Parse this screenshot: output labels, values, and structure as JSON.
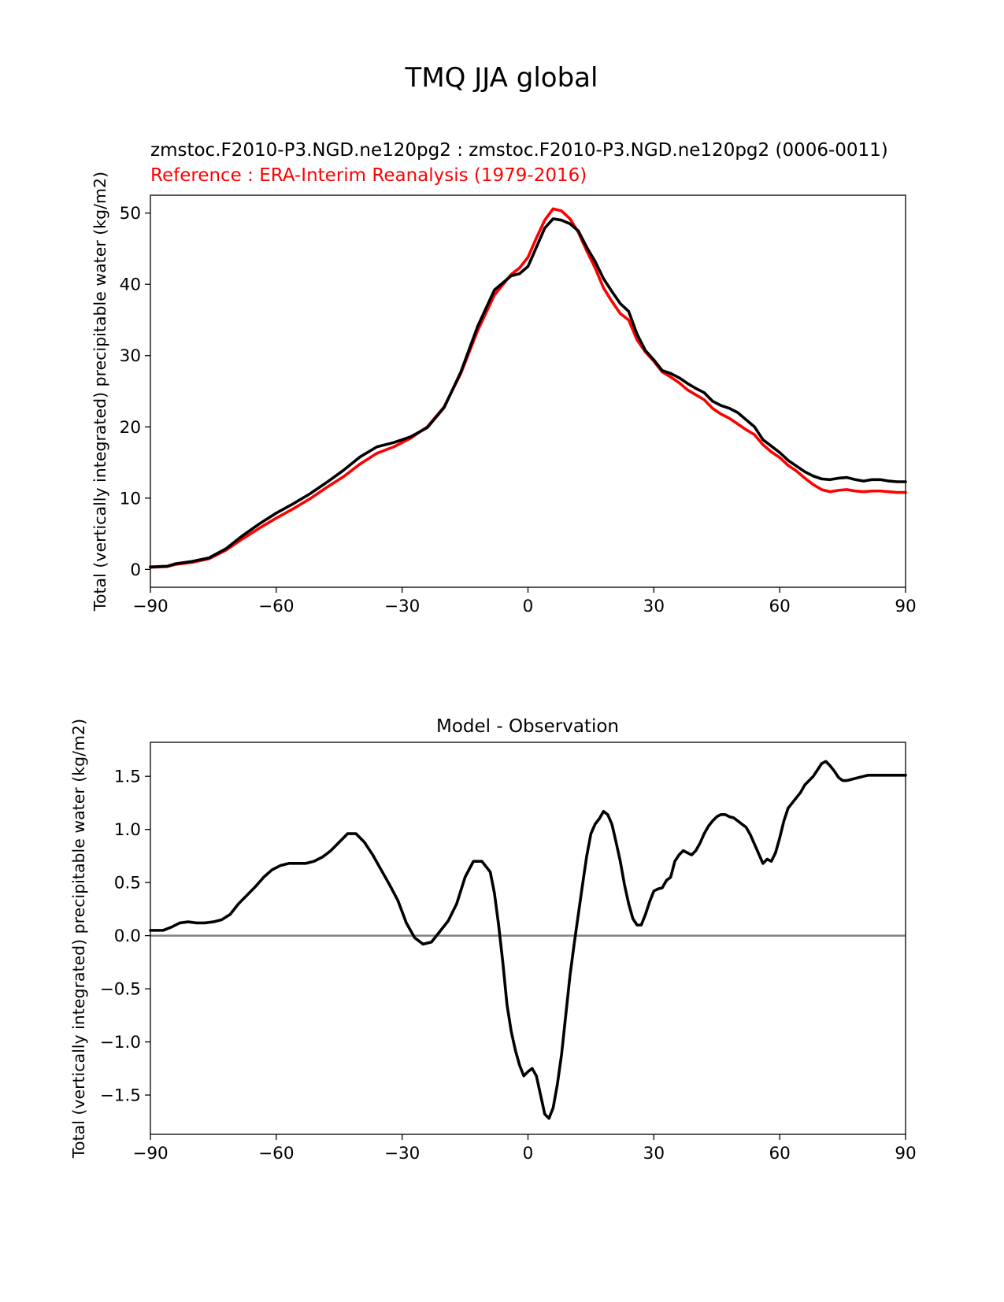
{
  "figure_title": "TMQ JJA global",
  "chart_data": [
    {
      "type": "line",
      "test_title": "zmstoc.F2010-P3.NGD.ne120pg2 : zmstoc.F2010-P3.NGD.ne120pg2 (0006-0011)",
      "ref_title": "Reference : ERA-Interim Reanalysis (1979-2016)",
      "xlabel": "",
      "ylabel": "Total (vertically integrated) precipitable water (kg/m2)",
      "xlim": [
        -90,
        90
      ],
      "ylim": [
        -2.5,
        52.5
      ],
      "xticks": [
        -90,
        -60,
        -30,
        0,
        30,
        60,
        90
      ],
      "xtick_labels": [
        "−90",
        "−60",
        "−30",
        "0",
        "30",
        "60",
        "90"
      ],
      "yticks": [
        0,
        10,
        20,
        30,
        40,
        50
      ],
      "ytick_labels": [
        "0",
        "10",
        "20",
        "30",
        "40",
        "50"
      ],
      "series": [
        {
          "name": "ERA-Interim Reanalysis (1979-2016)",
          "color": "#ff0000",
          "x": [
            -90,
            -86,
            -84,
            -80,
            -76,
            -72,
            -68,
            -64,
            -60,
            -56,
            -52,
            -48,
            -44,
            -40,
            -36,
            -32,
            -28,
            -24,
            -20,
            -16,
            -12,
            -8,
            -4,
            -2,
            0,
            2,
            4,
            6,
            8,
            10,
            12,
            14,
            16,
            18,
            20,
            22,
            24,
            26,
            28,
            30,
            32,
            34,
            36,
            38,
            40,
            42,
            44,
            46,
            48,
            50,
            52,
            54,
            56,
            58,
            60,
            62,
            64,
            66,
            68,
            70,
            72,
            74,
            76,
            78,
            80,
            82,
            84,
            86,
            88,
            90
          ],
          "values": [
            0.3,
            0.4,
            0.7,
            1.0,
            1.5,
            2.7,
            4.3,
            5.8,
            7.2,
            8.5,
            9.9,
            11.5,
            13.0,
            14.8,
            16.3,
            17.2,
            18.4,
            20.0,
            22.8,
            27.5,
            33.5,
            38.5,
            41.4,
            42.3,
            43.8,
            46.5,
            49.0,
            50.6,
            50.3,
            49.2,
            47.3,
            44.7,
            42.3,
            39.5,
            37.6,
            35.9,
            35.0,
            32.2,
            30.5,
            29.2,
            27.7,
            27.0,
            26.2,
            25.2,
            24.5,
            23.8,
            22.6,
            21.8,
            21.2,
            20.4,
            19.6,
            18.9,
            17.5,
            16.5,
            15.7,
            14.6,
            13.8,
            12.8,
            11.9,
            11.2,
            10.9,
            11.1,
            11.2,
            11.0,
            10.9,
            11.0,
            11.0,
            10.9,
            10.8,
            10.8
          ],
          "values_note": "reference (ERA-Interim) latitude profile"
        },
        {
          "name": "zmstoc.F2010-P3.NGD.ne120pg2 (0006-0011)",
          "color": "#000000",
          "x": [
            -90,
            -86,
            -84,
            -80,
            -76,
            -72,
            -68,
            -64,
            -60,
            -56,
            -52,
            -48,
            -44,
            -40,
            -36,
            -32,
            -28,
            -24,
            -20,
            -16,
            -12,
            -8,
            -4,
            -2,
            0,
            2,
            4,
            6,
            8,
            10,
            12,
            14,
            16,
            18,
            20,
            22,
            24,
            26,
            28,
            30,
            32,
            34,
            36,
            38,
            40,
            42,
            44,
            46,
            48,
            50,
            52,
            54,
            56,
            58,
            60,
            62,
            64,
            66,
            68,
            70,
            72,
            74,
            76,
            78,
            80,
            82,
            84,
            86,
            88,
            90
          ],
          "values": [
            0.35,
            0.45,
            0.8,
            1.13,
            1.63,
            2.9,
            4.75,
            6.4,
            7.9,
            9.2,
            10.6,
            12.2,
            13.9,
            15.8,
            17.2,
            17.8,
            18.6,
            19.9,
            22.7,
            27.7,
            34.1,
            39.2,
            41.2,
            41.5,
            42.5,
            45.2,
            47.9,
            49.2,
            49.0,
            48.5,
            47.5,
            45.2,
            43.2,
            40.8,
            39.0,
            37.3,
            36.2,
            33.0,
            30.7,
            29.4,
            27.9,
            27.5,
            26.9,
            26.1,
            25.4,
            24.8,
            23.6,
            23.0,
            22.6,
            22.0,
            21.0,
            20.0,
            18.2,
            17.3,
            16.4,
            15.3,
            14.5,
            13.7,
            13.1,
            12.7,
            12.6,
            12.8,
            12.9,
            12.6,
            12.4,
            12.6,
            12.6,
            12.4,
            12.3,
            12.3
          ],
          "values_note": "test model latitude profile"
        }
      ]
    },
    {
      "type": "line",
      "title": "Model - Observation",
      "xlabel": "",
      "ylabel": "Total (vertically integrated) precipitable water (kg/m2)",
      "xlim": [
        -90,
        90
      ],
      "ylim": [
        -1.87,
        1.82
      ],
      "xticks": [
        -90,
        -60,
        -30,
        0,
        30,
        60,
        90
      ],
      "xtick_labels": [
        "−90",
        "−60",
        "−30",
        "0",
        "30",
        "60",
        "90"
      ],
      "yticks": [
        -1.5,
        -1.0,
        -0.5,
        0.0,
        0.5,
        1.0,
        1.5
      ],
      "ytick_labels": [
        "−1.5",
        "−1.0",
        "−0.5",
        "0.0",
        "0.5",
        "1.0",
        "1.5"
      ],
      "zero_line_color": "#808080",
      "series": [
        {
          "name": "Model - Observation",
          "color": "#000000",
          "x": [
            -90,
            -87,
            -85,
            -83,
            -81,
            -79,
            -77,
            -75,
            -73,
            -71,
            -69,
            -67,
            -65,
            -63,
            -61,
            -59,
            -57,
            -55,
            -53,
            -51,
            -49,
            -47,
            -45,
            -43,
            -41,
            -39,
            -37,
            -35,
            -33,
            -31,
            -29,
            -27,
            -25,
            -23,
            -21,
            -19,
            -17,
            -15,
            -13,
            -11,
            -9,
            -8,
            -7,
            -6,
            -5,
            -4,
            -3,
            -2,
            -1,
            0,
            1,
            2,
            3,
            4,
            5,
            6,
            7,
            8,
            9,
            10,
            11,
            12,
            13,
            14,
            15,
            16,
            17,
            18,
            19,
            20,
            21,
            22,
            23,
            24,
            25,
            26,
            27,
            28,
            29,
            30,
            31,
            32,
            33,
            34,
            35,
            36,
            37,
            38,
            39,
            40,
            41,
            42,
            43,
            44,
            45,
            46,
            47,
            48,
            49,
            50,
            51,
            52,
            53,
            54,
            55,
            56,
            57,
            58,
            59,
            60,
            61,
            62,
            63,
            64,
            65,
            66,
            67,
            68,
            69,
            70,
            71,
            72,
            73,
            74,
            75,
            76,
            77,
            78,
            79,
            80,
            81,
            82,
            83,
            84,
            85,
            86,
            87,
            88,
            89,
            90
          ],
          "values": [
            0.05,
            0.05,
            0.08,
            0.12,
            0.13,
            0.12,
            0.12,
            0.13,
            0.15,
            0.2,
            0.3,
            0.38,
            0.46,
            0.55,
            0.62,
            0.66,
            0.68,
            0.68,
            0.68,
            0.7,
            0.74,
            0.8,
            0.88,
            0.96,
            0.96,
            0.88,
            0.76,
            0.62,
            0.48,
            0.33,
            0.12,
            -0.02,
            -0.08,
            -0.06,
            0.04,
            0.14,
            0.3,
            0.55,
            0.7,
            0.7,
            0.6,
            0.4,
            0.1,
            -0.25,
            -0.65,
            -0.9,
            -1.08,
            -1.22,
            -1.32,
            -1.28,
            -1.25,
            -1.32,
            -1.5,
            -1.68,
            -1.72,
            -1.62,
            -1.4,
            -1.12,
            -0.75,
            -0.38,
            -0.08,
            0.2,
            0.48,
            0.75,
            0.96,
            1.05,
            1.1,
            1.17,
            1.14,
            1.05,
            0.88,
            0.7,
            0.48,
            0.3,
            0.16,
            0.1,
            0.1,
            0.2,
            0.32,
            0.42,
            0.44,
            0.45,
            0.52,
            0.55,
            0.7,
            0.76,
            0.8,
            0.78,
            0.76,
            0.8,
            0.87,
            0.96,
            1.03,
            1.08,
            1.12,
            1.14,
            1.14,
            1.12,
            1.11,
            1.08,
            1.05,
            1.02,
            0.95,
            0.86,
            0.77,
            0.68,
            0.72,
            0.7,
            0.78,
            0.92,
            1.08,
            1.2,
            1.25,
            1.3,
            1.35,
            1.42,
            1.46,
            1.5,
            1.56,
            1.62,
            1.64,
            1.6,
            1.55,
            1.49,
            1.46,
            1.46,
            1.47,
            1.48,
            1.49,
            1.5,
            1.51,
            1.51,
            1.51,
            1.51,
            1.51,
            1.51,
            1.51,
            1.51,
            1.51,
            1.51
          ],
          "values_note": "difference profile (model minus reference)"
        }
      ]
    }
  ]
}
